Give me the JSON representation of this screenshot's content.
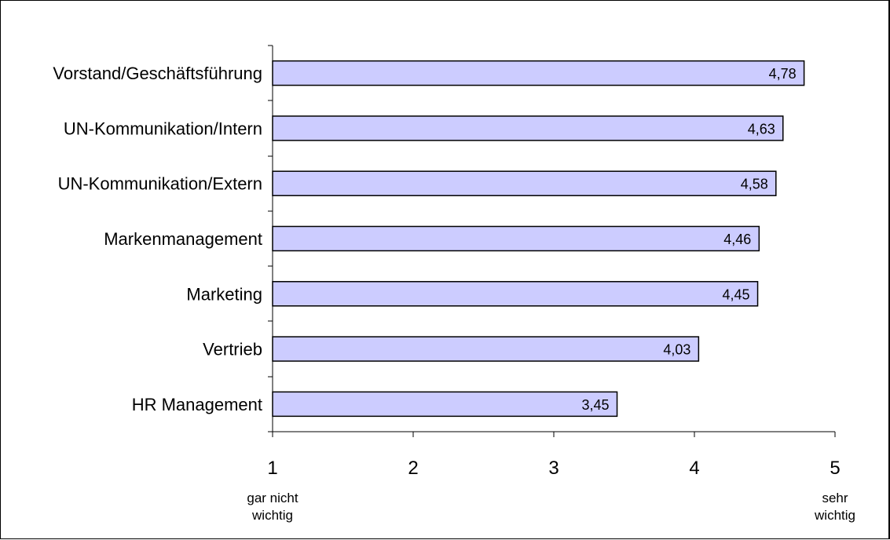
{
  "chart_data": {
    "type": "bar",
    "orientation": "horizontal",
    "categories": [
      "Vorstand/Geschäftsführung",
      "UN-Kommunikation/Intern",
      "UN-Kommunikation/Extern",
      "Markenmanagement",
      "Marketing",
      "Vertrieb",
      "HR Management"
    ],
    "values": [
      4.78,
      4.63,
      4.58,
      4.46,
      4.45,
      4.03,
      3.45
    ],
    "value_labels": [
      "4,78",
      "4,63",
      "4,58",
      "4,46",
      "4,45",
      "4,03",
      "3,45"
    ],
    "xlim": [
      1,
      5
    ],
    "x_ticks": [
      1,
      2,
      3,
      4,
      5
    ],
    "x_tick_labels": [
      "1",
      "2",
      "3",
      "4",
      "5"
    ],
    "x_end_labels": {
      "low": [
        "gar nicht",
        "wichtig"
      ],
      "high": [
        "sehr",
        "wichtig"
      ]
    },
    "grid": false,
    "bar_color": "#ccccff",
    "bar_border_color": "#000000"
  }
}
